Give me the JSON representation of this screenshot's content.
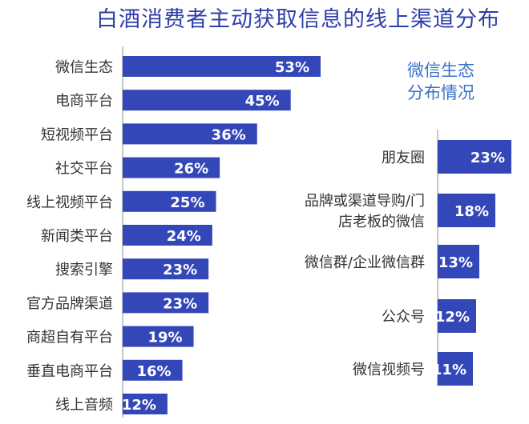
{
  "title": "白酒消费者主动获取信息的线上渠道分布",
  "colors": {
    "bar": "#3447b8",
    "title": "#2f3fa8",
    "subtitle": "#3a72c8",
    "label": "#333333",
    "axis": "#b5b5b5",
    "value_text": "#ffffff"
  },
  "chart_data": [
    {
      "type": "bar",
      "orientation": "horizontal",
      "categories": [
        "微信生态",
        "电商平台",
        "短视频平台",
        "社交平台",
        "线上视频平台",
        "新闻类平台",
        "搜索引擎",
        "官方品牌渠道",
        "商超自有平台",
        "垂直电商平台",
        "线上音频"
      ],
      "values": [
        53,
        45,
        36,
        26,
        25,
        24,
        23,
        23,
        19,
        16,
        12
      ],
      "value_labels": [
        "53%",
        "45%",
        "36%",
        "26%",
        "25%",
        "24%",
        "23%",
        "23%",
        "19%",
        "16%",
        "12%"
      ],
      "unit": "%"
    },
    {
      "type": "bar",
      "orientation": "horizontal",
      "title_lines": [
        "微信生态",
        "分布情况"
      ],
      "categories": [
        [
          "朋友圈"
        ],
        [
          "品牌或渠道导购/门",
          "店老板的微信"
        ],
        [
          "微信群/企业微信群"
        ],
        [
          "公众号"
        ],
        [
          "微信视频号"
        ]
      ],
      "values": [
        23,
        18,
        13,
        12,
        11
      ],
      "value_labels": [
        "23%",
        "18%",
        "13%",
        "12%",
        "11%"
      ],
      "unit": "%"
    }
  ]
}
